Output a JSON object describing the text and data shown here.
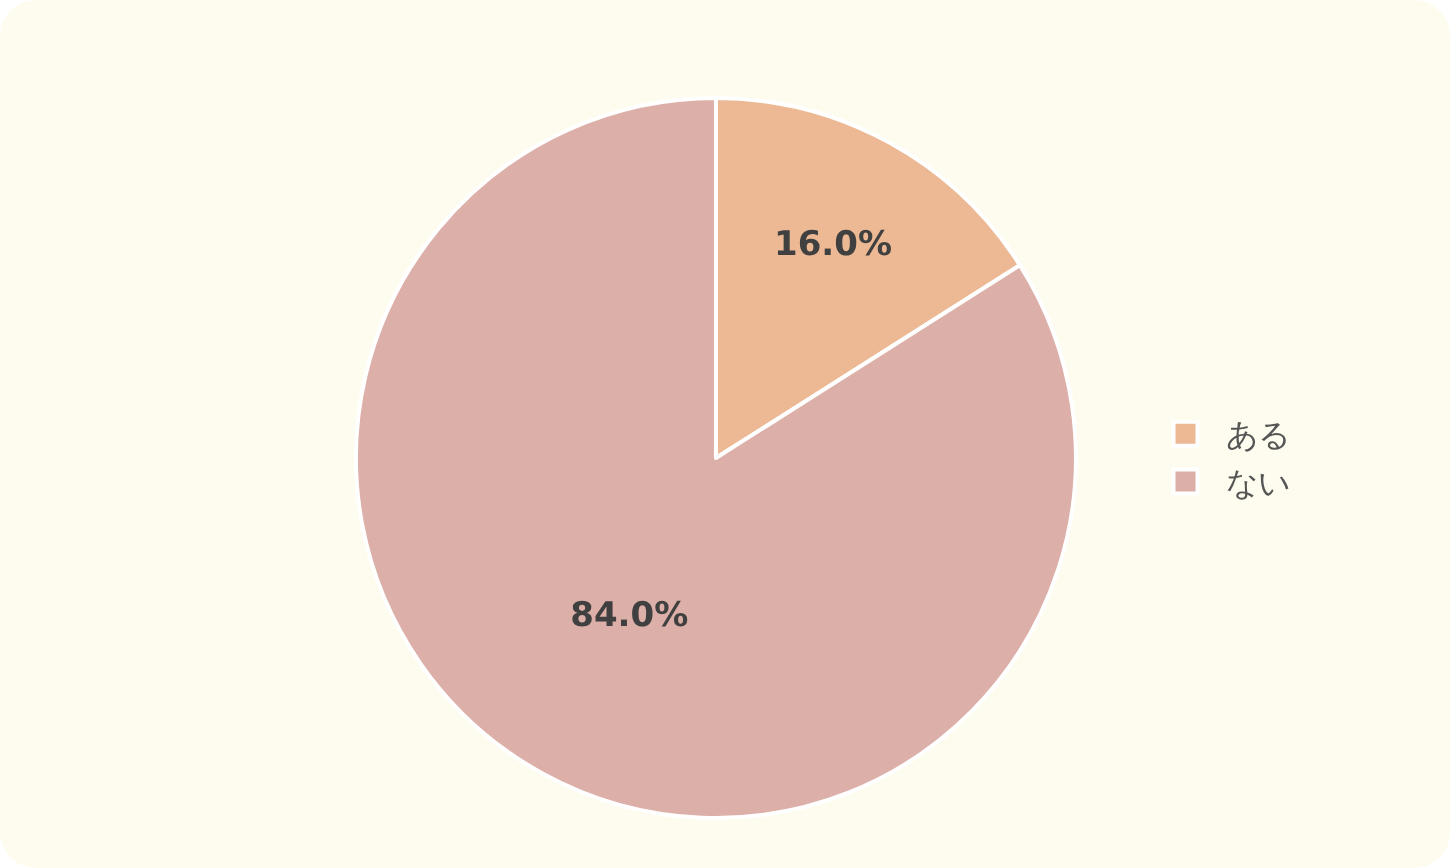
{
  "chart_data": {
    "type": "pie",
    "categories": [
      "ある",
      "ない"
    ],
    "values": [
      16,
      84
    ],
    "colors": [
      "#edb994",
      "#dcb0a8"
    ],
    "value_labels": [
      "16.0%",
      "84.0%"
    ],
    "legend": "right"
  }
}
